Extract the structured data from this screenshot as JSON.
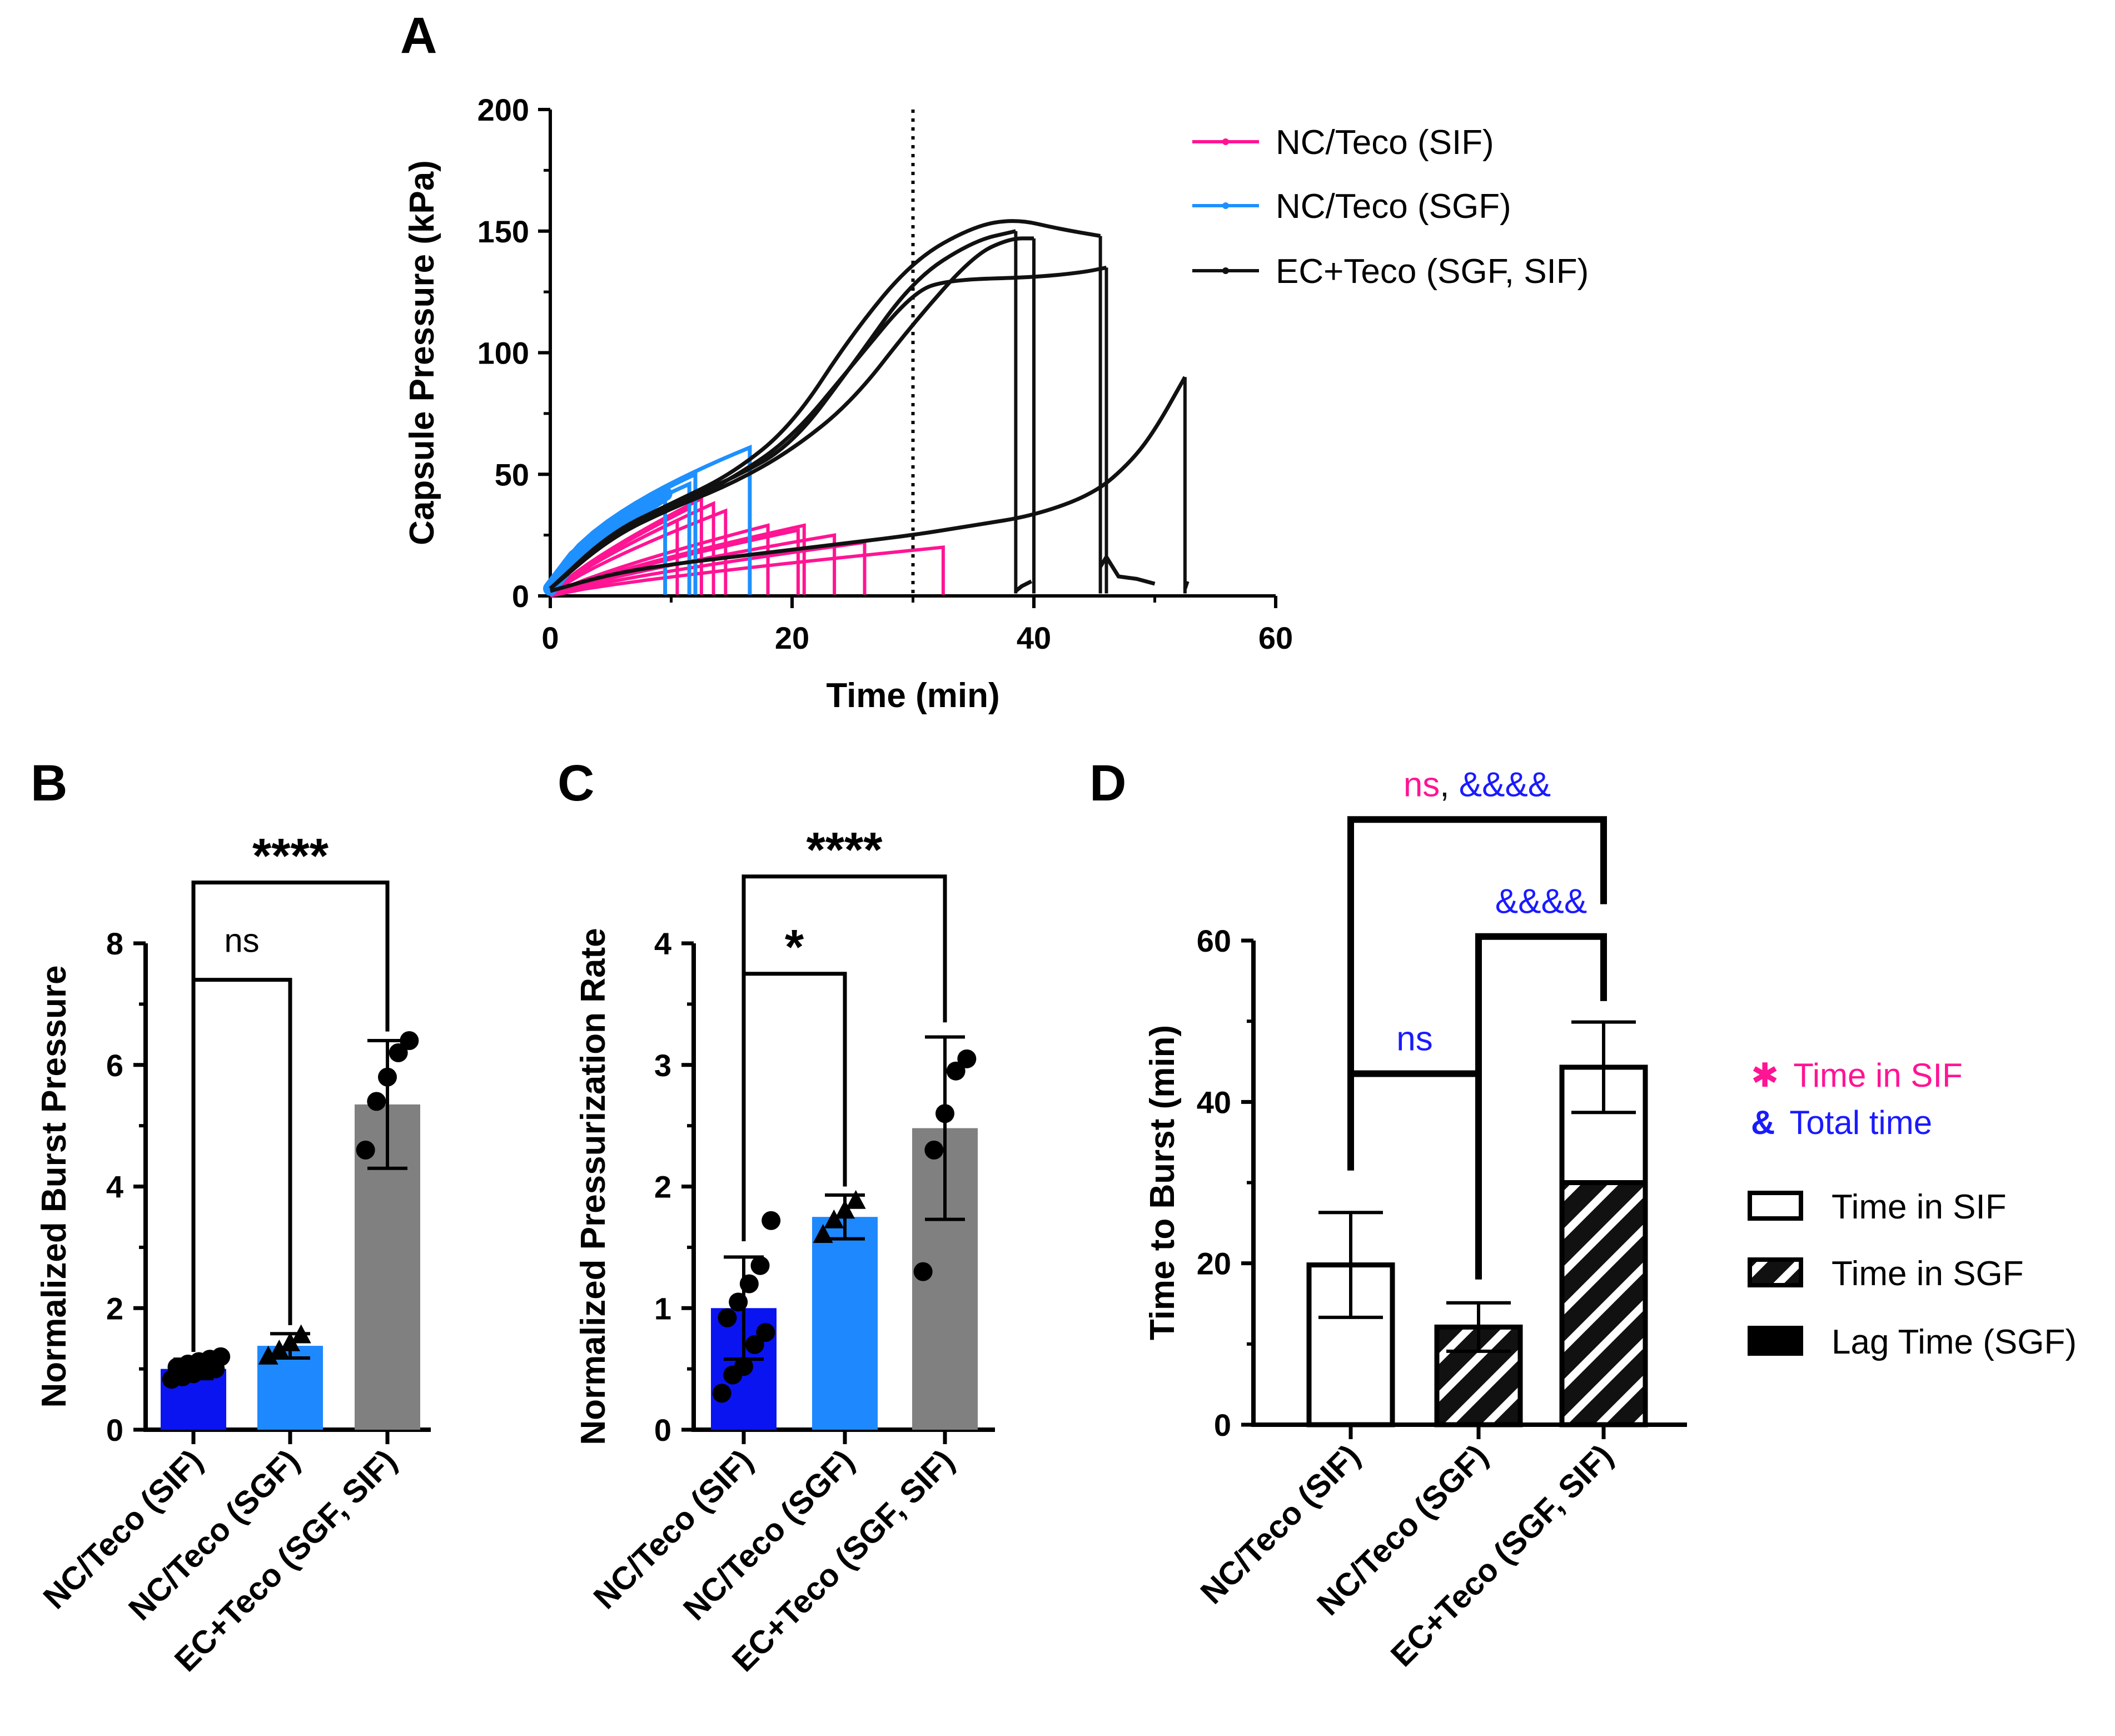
{
  "colors": {
    "sif": "#ff1493",
    "sgf": "#1e90ff",
    "ec": "#111111",
    "bar_sif": "#0a14f0",
    "bar_sgf": "#1e88ff",
    "bar_ec": "#808080",
    "total_time": "#1a1aff"
  },
  "chart_data": [
    {
      "panel": "A",
      "type": "line",
      "xlabel": "Time (min)",
      "ylabel": "Capsule Pressure (kPa)",
      "xlim": [
        0,
        60
      ],
      "ylim": [
        0,
        200
      ],
      "xticks": [
        "0",
        "20",
        "40",
        "60"
      ],
      "yticks": [
        "0",
        "50",
        "100",
        "150",
        "200"
      ],
      "vline_x": 30,
      "legend": [
        "NC/Teco (SIF)",
        "NC/Teco (SGF)",
        "EC+Teco (SGF, SIF)"
      ],
      "series": [
        {
          "name": "NC/Teco (SIF)",
          "color_key": "sif",
          "traces": [
            {
              "end": 10.5,
              "peak": 31
            },
            {
              "end": 11.5,
              "peak": 36
            },
            {
              "end": 12.5,
              "peak": 40
            },
            {
              "end": 13.5,
              "peak": 38
            },
            {
              "end": 14.5,
              "peak": 35
            },
            {
              "end": 18.0,
              "peak": 29
            },
            {
              "end": 20.5,
              "peak": 27
            },
            {
              "end": 21.0,
              "peak": 29
            },
            {
              "end": 23.5,
              "peak": 25
            },
            {
              "end": 26.0,
              "peak": 22
            },
            {
              "end": 32.5,
              "peak": 20
            }
          ]
        },
        {
          "name": "NC/Teco (SGF)",
          "color_key": "sgf",
          "traces": [
            {
              "end": 9.5,
              "peak": 44
            },
            {
              "end": 11.5,
              "peak": 46
            },
            {
              "end": 12.0,
              "peak": 50
            },
            {
              "end": 16.5,
              "peak": 61
            }
          ]
        },
        {
          "name": "EC+Teco (SGF, SIF)",
          "color_key": "ec",
          "traces": [
            {
              "points": [
                [
                  0,
                  3
                ],
                [
                  5,
                  25
                ],
                [
                  10,
                  38
                ],
                [
                  15,
                  48
                ],
                [
                  20,
                  62
                ],
                [
                  25,
                  95
                ],
                [
                  30,
                  130
                ],
                [
                  35,
                  146
                ],
                [
                  38.5,
                  150
                ]
              ],
              "drop": 38.5,
              "residue": [
                [
                  38.5,
                  2
                ],
                [
                  39,
                  4
                ],
                [
                  39.8,
                  6
                ]
              ]
            },
            {
              "points": [
                [
                  0,
                  3
                ],
                [
                  5,
                  24
                ],
                [
                  10,
                  36
                ],
                [
                  15,
                  46
                ],
                [
                  20,
                  60
                ],
                [
                  25,
                  80
                ],
                [
                  30,
                  112
                ],
                [
                  35,
                  140
                ],
                [
                  38,
                  147
                ],
                [
                  40,
                  147
                ]
              ],
              "drop": 40.0,
              "residue": []
            },
            {
              "points": [
                [
                  0,
                  3
                ],
                [
                  5,
                  26
                ],
                [
                  10,
                  38
                ],
                [
                  15,
                  50
                ],
                [
                  20,
                  70
                ],
                [
                  25,
                  108
                ],
                [
                  30,
                  138
                ],
                [
                  35,
                  152
                ],
                [
                  38.5,
                  155
                ],
                [
                  42,
                  151
                ],
                [
                  45.5,
                  148
                ]
              ],
              "drop": 45.5,
              "residue": [
                [
                  45.5,
                  12
                ],
                [
                  46,
                  16
                ],
                [
                  47,
                  8
                ],
                [
                  48.5,
                  7
                ],
                [
                  50,
                  5
                ]
              ]
            },
            {
              "points": [
                [
                  0,
                  3
                ],
                [
                  5,
                  24
                ],
                [
                  10,
                  36
                ],
                [
                  15,
                  48
                ],
                [
                  20,
                  65
                ],
                [
                  25,
                  95
                ],
                [
                  30,
                  125
                ],
                [
                  33,
                  130
                ],
                [
                  40,
                  131
                ],
                [
                  44,
                  133
                ],
                [
                  46,
                  135
                ]
              ],
              "drop": 46.0,
              "residue": []
            },
            {
              "points": [
                [
                  0,
                  2
                ],
                [
                  5,
                  9
                ],
                [
                  10,
                  13
                ],
                [
                  15,
                  16
                ],
                [
                  20,
                  19
                ],
                [
                  25,
                  22
                ],
                [
                  30,
                  25
                ],
                [
                  35,
                  29
                ],
                [
                  40,
                  33
                ],
                [
                  45,
                  42
                ],
                [
                  48,
                  55
                ],
                [
                  50,
                  68
                ],
                [
                  52.5,
                  90
                ]
              ],
              "drop": 52.5,
              "residue": [
                [
                  52.5,
                  3
                ],
                [
                  52.7,
                  6
                ]
              ]
            }
          ]
        }
      ]
    },
    {
      "panel": "B",
      "type": "bar",
      "ylabel": "Normalized Burst Pressure",
      "ylim": [
        0,
        8
      ],
      "yticks": [
        "0",
        "2",
        "4",
        "6",
        "8"
      ],
      "categories": [
        "NC/Teco (SIF)",
        "NC/Teco (SGF)",
        "EC+Teco (SGF, SIF)"
      ],
      "values": [
        1.0,
        1.38,
        5.35
      ],
      "sd": [
        0.16,
        0.2,
        1.05
      ],
      "points": [
        [
          0.83,
          0.87,
          0.92,
          0.97,
          1.0,
          1.03,
          1.08,
          1.12,
          1.16,
          1.2
        ],
        [
          1.2,
          1.3,
          1.42,
          1.55
        ],
        [
          4.6,
          5.4,
          5.8,
          6.2,
          6.4
        ]
      ],
      "markers": [
        "circle",
        "triangle",
        "circle"
      ],
      "brackets": [
        {
          "from": 0,
          "to": 1,
          "level": 7.4,
          "label": "ns"
        },
        {
          "from": 0,
          "to": 2,
          "level": 9.0,
          "label": "****"
        }
      ]
    },
    {
      "panel": "C",
      "type": "bar",
      "ylabel": "Normalized Pressurization Rate",
      "ylim": [
        0,
        4
      ],
      "yticks": [
        "0",
        "1",
        "2",
        "3",
        "4"
      ],
      "categories": [
        "NC/Teco (SIF)",
        "NC/Teco (SGF)",
        "EC+Teco (SGF, SIF)"
      ],
      "values": [
        1.0,
        1.75,
        2.48
      ],
      "sd": [
        0.42,
        0.18,
        0.75
      ],
      "points": [
        [
          0.3,
          0.45,
          0.52,
          0.7,
          0.8,
          0.92,
          1.05,
          1.2,
          1.35,
          1.72
        ],
        [
          1.6,
          1.72,
          1.8,
          1.88
        ],
        [
          1.3,
          2.3,
          2.6,
          2.95,
          3.05
        ]
      ],
      "markers": [
        "circle",
        "triangle",
        "circle"
      ],
      "brackets": [
        {
          "from": 0,
          "to": 1,
          "level": 3.75,
          "label": "*"
        },
        {
          "from": 0,
          "to": 2,
          "level": 4.55,
          "label": "****"
        }
      ]
    },
    {
      "panel": "D",
      "type": "bar",
      "stacked": true,
      "ylabel": "Time to Burst (min)",
      "ylim": [
        0,
        60
      ],
      "yticks": [
        "0",
        "20",
        "40",
        "60"
      ],
      "categories": [
        "NC/Teco (SIF)",
        "NC/Teco (SGF)",
        "EC+Teco (SGF, SIF)"
      ],
      "series": [
        {
          "name": "Time in SIF",
          "values": [
            19.8,
            0,
            14.3
          ]
        },
        {
          "name": "Time in SGF",
          "values": [
            0,
            12.1,
            30.0
          ]
        },
        {
          "name": "Lag Time (SGF)",
          "values": [
            0,
            0,
            0
          ]
        }
      ],
      "totals": [
        19.8,
        12.1,
        44.3
      ],
      "sd": [
        6.5,
        3.0,
        5.6
      ],
      "brackets": [
        {
          "from": 0,
          "to": 1,
          "level": 43.5,
          "label_parts": [
            {
              "text": "ns",
              "color_key": "total_time"
            }
          ]
        },
        {
          "from": 1,
          "to": 2,
          "level": 60.5,
          "label_parts": [
            {
              "text": "&&&&",
              "color_key": "total_time"
            }
          ]
        },
        {
          "from": 0,
          "to": 2,
          "level": 75.0,
          "label_parts": [
            {
              "text": "ns",
              "color_key": "sif"
            },
            {
              "text": ", ",
              "color_key": "ec"
            },
            {
              "text": "&&&&",
              "color_key": "total_time"
            }
          ]
        }
      ],
      "stat_legend": [
        {
          "symbol": "✱",
          "label": "Time in SIF",
          "color_key": "sif"
        },
        {
          "symbol": "&",
          "label": "Total time",
          "color_key": "total_time"
        }
      ],
      "legend": [
        "Time in SIF",
        "Time in SGF",
        "Lag Time (SGF)"
      ]
    }
  ],
  "panel_labels": [
    "A",
    "B",
    "C",
    "D"
  ]
}
